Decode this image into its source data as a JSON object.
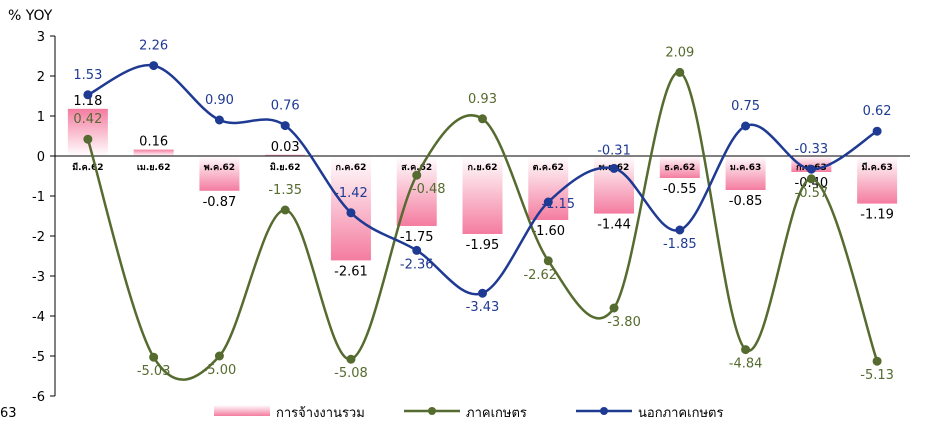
{
  "chart_data": {
    "type": "bar+line",
    "unit_label": "% YOY",
    "stray_label": "63",
    "ylim": [
      -6,
      3
    ],
    "yticks": [
      "3",
      "2",
      "1",
      "0",
      "-1",
      "-2",
      "-3",
      "-4",
      "-5",
      "-6"
    ],
    "categories": [
      "มี.ค.62",
      "เม.ย.62",
      "พ.ค.62",
      "มิ.ย.62",
      "ก.ค.62",
      "ส.ค.62",
      "ก.ย.62",
      "ต.ค.62",
      "พ.ย.62",
      "ธ.ค.62",
      "ม.ค.63",
      "ก.พ.63",
      "มี.ค.63"
    ],
    "series": [
      {
        "name": "การจ้างงานรวม",
        "type": "bar",
        "color": "#f47ca0",
        "values": [
          1.18,
          0.16,
          -0.87,
          0.03,
          -2.61,
          -1.75,
          -1.95,
          -1.6,
          -1.44,
          -0.55,
          -0.85,
          -0.4,
          -1.19
        ],
        "labels": [
          "1.18",
          "0.16",
          "-0.87",
          "0.03",
          "-2.61",
          "-1.75",
          "-1.95",
          "-1.60",
          "-1.44",
          "-0.55",
          "-0.85",
          "-0.40",
          "-1.19"
        ]
      },
      {
        "name": "ภาคเกษตร",
        "type": "line",
        "color": "#556b2f",
        "values": [
          0.42,
          -5.03,
          -5.0,
          -1.35,
          -5.08,
          -0.48,
          0.93,
          -2.62,
          -3.8,
          2.09,
          -4.84,
          -0.57,
          -5.13
        ],
        "labels": [
          "0.42",
          "-5.03",
          "-5.00",
          "-1.35",
          "-5.08",
          "-0.48",
          "0.93",
          "-2.62",
          "-3.80",
          "2.09",
          "-4.84",
          "-0.57",
          "-5.13"
        ]
      },
      {
        "name": "นอกภาคเกษตร",
        "type": "line",
        "color": "#1f3a93",
        "values": [
          1.53,
          2.26,
          0.9,
          0.76,
          -1.42,
          -2.36,
          -3.43,
          -1.15,
          -0.31,
          -1.85,
          0.75,
          -0.33,
          0.62
        ],
        "labels": [
          "1.53",
          "2.26",
          "0.90",
          "0.76",
          "-1.42",
          "-2.36",
          "-3.43",
          "-1.15",
          "-0.31",
          "-1.85",
          "0.75",
          "-0.33",
          "0.62"
        ]
      }
    ],
    "legend_position": "bottom"
  }
}
